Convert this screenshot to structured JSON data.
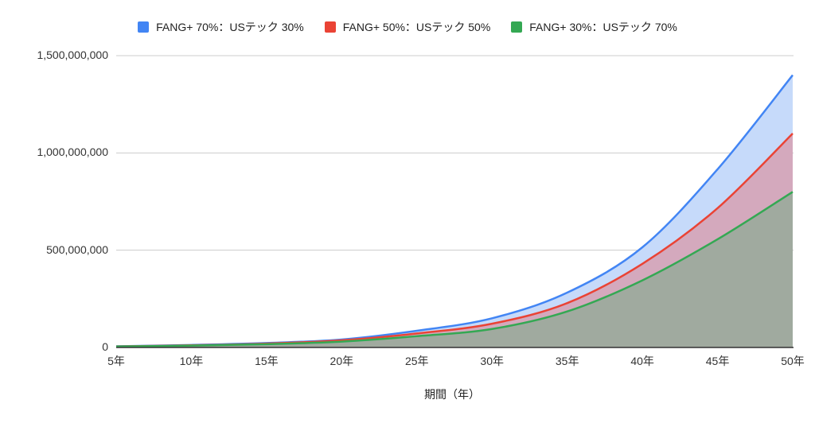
{
  "chart_data": {
    "type": "area",
    "title": "",
    "xlabel": "期間（年）",
    "ylabel": "",
    "categories": [
      "5年",
      "10年",
      "15年",
      "20年",
      "25年",
      "30年",
      "35年",
      "40年",
      "45年",
      "50年"
    ],
    "x": [
      5,
      10,
      15,
      20,
      25,
      30,
      35,
      40,
      45,
      50
    ],
    "ylim": [
      0,
      1500000000
    ],
    "yticks": [
      0,
      500000000,
      1000000000,
      1500000000
    ],
    "ytick_labels": [
      "0",
      "500,000,000",
      "1,000,000,000",
      "1,500,000,000"
    ],
    "grid": true,
    "legend_position": "top",
    "series": [
      {
        "name": "FANG+ 70%：USテック 30%",
        "color": "#4285f4",
        "fill": "#c6dafa",
        "values": [
          6000000,
          13000000,
          23000000,
          41000000,
          86000000,
          150000000,
          282000000,
          515000000,
          916000000,
          1400000000
        ]
      },
      {
        "name": "FANG+ 50%：USテック 50%",
        "color": "#ea4335",
        "fill": "#d4a9bd",
        "values": [
          5500000,
          11000000,
          20000000,
          37000000,
          72000000,
          122000000,
          228000000,
          430000000,
          716000000,
          1100000000
        ]
      },
      {
        "name": "FANG+ 30%：USテック 70%",
        "color": "#34a853",
        "fill": "#a0aa9f",
        "values": [
          5000000,
          9500000,
          17000000,
          30000000,
          58000000,
          95000000,
          185000000,
          345000000,
          556000000,
          800000000
        ]
      }
    ]
  }
}
